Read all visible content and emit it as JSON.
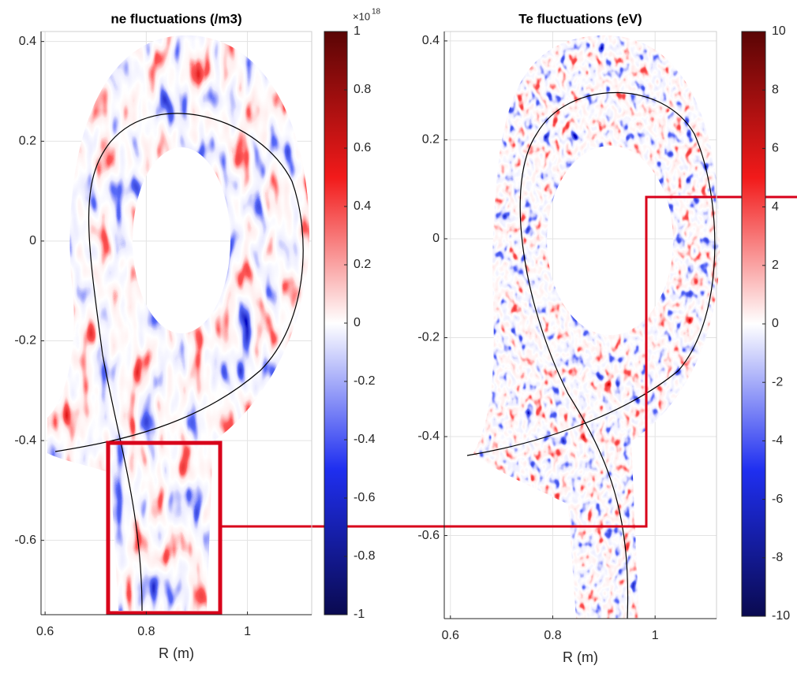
{
  "chart_data": [
    {
      "type": "heatmap",
      "title": "ne fluctuations (/m3)",
      "x_label": "R (m)",
      "xlim": [
        0.592,
        1.127
      ],
      "xticks": [
        0.6,
        0.8,
        1
      ],
      "ylim": [
        -0.749,
        0.42
      ],
      "yticks": [
        -0.6,
        -0.4,
        -0.2,
        0,
        0.2,
        0.4
      ],
      "colorbar": {
        "clim": [
          -1,
          1
        ],
        "ticks": [
          -1,
          -0.8,
          -0.6,
          -0.4,
          -0.2,
          0,
          0.2,
          0.4,
          0.6,
          0.8,
          1
        ],
        "multiplier": "×10",
        "exponent": "18"
      },
      "grid": true
    },
    {
      "type": "heatmap",
      "title": "Te fluctuations (eV)",
      "x_label": "R (m)",
      "xlim": [
        0.588,
        1.12
      ],
      "xticks": [
        0.6,
        0.8,
        1
      ],
      "ylim": [
        -0.768,
        0.419
      ],
      "yticks": [
        -0.6,
        -0.4,
        -0.2,
        0,
        0.2,
        0.4
      ],
      "colorbar": {
        "clim": [
          -10,
          10
        ],
        "ticks": [
          -10,
          -8,
          -6,
          -4,
          -2,
          0,
          2,
          4,
          6,
          8,
          10
        ]
      },
      "grid": true
    }
  ]
}
